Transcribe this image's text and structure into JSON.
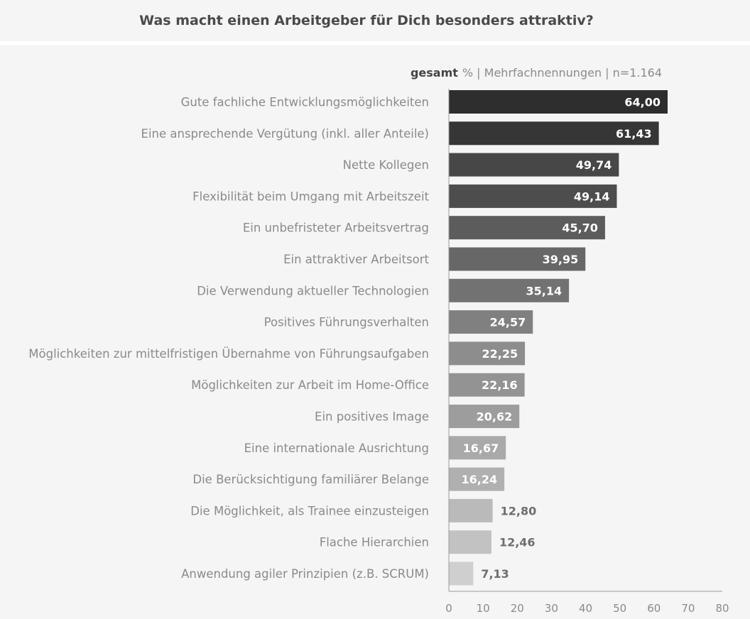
{
  "chart_data": {
    "type": "bar",
    "title": "Was macht einen Arbeitgeber für Dich besonders attraktiv?",
    "subtitle_bold": "gesamt",
    "subtitle": "% | Mehrfachnennungen | n=1.164",
    "categories": [
      "Gute fachliche Entwicklungsmöglichkeiten",
      "Eine ansprechende Vergütung (inkl. aller Anteile)",
      "Nette Kollegen",
      "Flexibilität beim Umgang mit Arbeitszeit",
      "Ein unbefristeter Arbeitsvertrag",
      "Ein attraktiver Arbeitsort",
      "Die Verwendung aktueller Technologien",
      "Positives Führungsverhalten",
      "Möglichkeiten zur mittelfristigen Übernahme von Führungsaufgaben",
      "Möglichkeiten zur Arbeit im Home-Office",
      "Ein positives Image",
      "Eine internationale Ausrichtung",
      "Die Berücksichtigung familiärer Belange",
      "Die Möglichkeit, als Trainee einzusteigen",
      "Flache Hierarchien",
      "Anwendung agiler Prinzipien (z.B. SCRUM)"
    ],
    "values": [
      64.0,
      61.43,
      49.74,
      49.14,
      45.7,
      39.95,
      35.14,
      24.57,
      22.25,
      22.16,
      20.62,
      16.67,
      16.24,
      12.8,
      12.46,
      7.13
    ],
    "value_labels": [
      "64,00",
      "61,43",
      "49,74",
      "49,14",
      "45,70",
      "39,95",
      "35,14",
      "24,57",
      "22,25",
      "22,16",
      "20,62",
      "16,67",
      "16,24",
      "12,80",
      "12,46",
      "7,13"
    ],
    "colors": [
      "#2e2e2e",
      "#363636",
      "#474747",
      "#4d4d4d",
      "#5c5c5c",
      "#676767",
      "#727272",
      "#808080",
      "#8d8d8d",
      "#939393",
      "#9d9d9d",
      "#a9a9a9",
      "#b0b0b0",
      "#bababa",
      "#c2c2c2",
      "#cfcfcf"
    ],
    "label_inside": [
      true,
      true,
      true,
      true,
      true,
      true,
      true,
      true,
      true,
      true,
      true,
      true,
      true,
      false,
      false,
      false
    ],
    "xlim": [
      0,
      80
    ],
    "xticks": [
      "0",
      "10",
      "20",
      "30",
      "40",
      "50",
      "60",
      "70",
      "80"
    ],
    "orientation": "horizontal",
    "grid": false
  }
}
